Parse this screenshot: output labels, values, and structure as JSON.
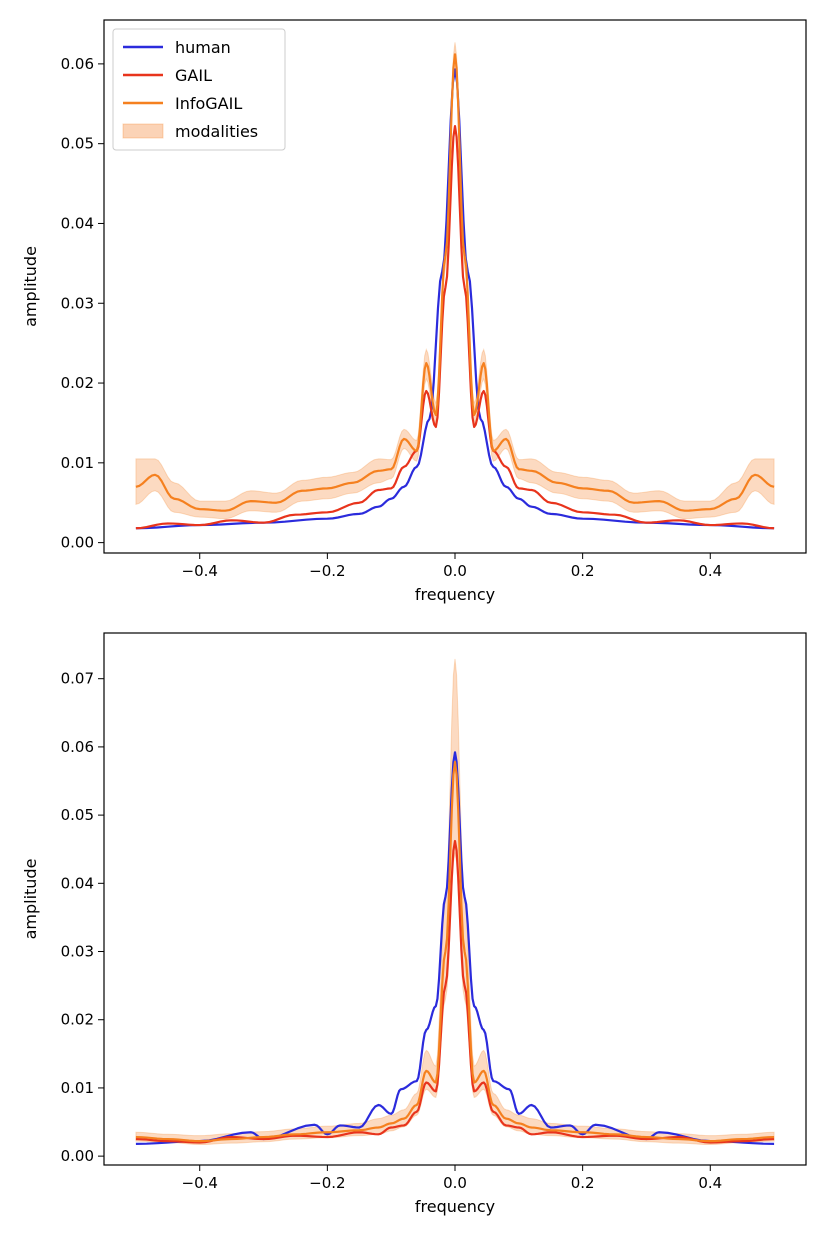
{
  "colors": {
    "human": "#2b2bdc",
    "gail": "#e8341c",
    "infogail": "#f5801f",
    "modalities_fill": "#fbd3b6",
    "axis": "#000000"
  },
  "chart_data": [
    {
      "type": "line",
      "xlabel": "frequency",
      "ylabel": "amplitude",
      "xlim": [
        -0.55,
        0.55
      ],
      "ylim": [
        -0.0013,
        0.0655
      ],
      "xticks": [
        -0.4,
        -0.2,
        0.0,
        0.2,
        0.4
      ],
      "xtick_labels": [
        "−0.4",
        "−0.2",
        "0.0",
        "0.2",
        "0.4"
      ],
      "yticks": [
        0.0,
        0.01,
        0.02,
        0.03,
        0.04,
        0.05,
        0.06
      ],
      "ytick_labels": [
        "0.00",
        "0.01",
        "0.02",
        "0.03",
        "0.04",
        "0.05",
        "0.06"
      ],
      "legend_position": "top-left",
      "legend": [
        "human",
        "GAIL",
        "InfoGAIL",
        "modalities"
      ],
      "peaks": {
        "human": 0.0593,
        "gail": 0.0522,
        "infogail": 0.0612,
        "modalities_upper": 0.0627,
        "modalities_lower": 0.0598
      },
      "tails": {
        "human": 0.0018,
        "gail": 0.0018,
        "infogail": 0.007
      },
      "series": [
        {
          "name": "human",
          "x": [
            -0.5,
            -0.4,
            -0.3,
            -0.2,
            -0.15,
            -0.12,
            -0.1,
            -0.08,
            -0.06,
            -0.04,
            -0.02,
            0.0,
            0.02,
            0.04,
            0.06,
            0.08,
            0.1,
            0.12,
            0.15,
            0.2,
            0.3,
            0.4,
            0.5
          ],
          "values": [
            0.0018,
            0.0022,
            0.0025,
            0.003,
            0.0036,
            0.0045,
            0.0055,
            0.007,
            0.0095,
            0.0155,
            0.034,
            0.0593,
            0.034,
            0.0155,
            0.0095,
            0.007,
            0.0055,
            0.0045,
            0.0036,
            0.003,
            0.0025,
            0.0022,
            0.0018
          ]
        },
        {
          "name": "GAIL",
          "x": [
            -0.5,
            -0.45,
            -0.4,
            -0.35,
            -0.3,
            -0.25,
            -0.2,
            -0.15,
            -0.12,
            -0.1,
            -0.08,
            -0.06,
            -0.045,
            -0.03,
            -0.015,
            0.0,
            0.015,
            0.03,
            0.045,
            0.06,
            0.08,
            0.1,
            0.12,
            0.15,
            0.2,
            0.25,
            0.3,
            0.35,
            0.4,
            0.45,
            0.5
          ],
          "values": [
            0.0018,
            0.0024,
            0.0022,
            0.0028,
            0.0025,
            0.0035,
            0.0038,
            0.005,
            0.0066,
            0.0068,
            0.0095,
            0.0115,
            0.019,
            0.0145,
            0.032,
            0.0522,
            0.032,
            0.0145,
            0.019,
            0.0115,
            0.0095,
            0.0068,
            0.0066,
            0.005,
            0.0038,
            0.0035,
            0.0025,
            0.0028,
            0.0022,
            0.0024,
            0.0018
          ]
        },
        {
          "name": "InfoGAIL",
          "x": [
            -0.5,
            -0.47,
            -0.44,
            -0.4,
            -0.36,
            -0.32,
            -0.28,
            -0.24,
            -0.2,
            -0.16,
            -0.12,
            -0.1,
            -0.08,
            -0.06,
            -0.045,
            -0.03,
            -0.015,
            0.0,
            0.015,
            0.03,
            0.045,
            0.06,
            0.08,
            0.1,
            0.12,
            0.16,
            0.2,
            0.24,
            0.28,
            0.32,
            0.36,
            0.4,
            0.44,
            0.47,
            0.5
          ],
          "values": [
            0.007,
            0.0085,
            0.0055,
            0.0042,
            0.004,
            0.0052,
            0.005,
            0.0065,
            0.0068,
            0.0075,
            0.009,
            0.0092,
            0.013,
            0.0115,
            0.0225,
            0.016,
            0.036,
            0.0612,
            0.036,
            0.016,
            0.0225,
            0.0115,
            0.013,
            0.0092,
            0.009,
            0.0075,
            0.0068,
            0.0065,
            0.005,
            0.0052,
            0.004,
            0.0042,
            0.0055,
            0.0085,
            0.007
          ]
        }
      ],
      "band": {
        "name": "modalities",
        "x": [
          -0.5,
          -0.47,
          -0.44,
          -0.4,
          -0.36,
          -0.32,
          -0.28,
          -0.24,
          -0.2,
          -0.16,
          -0.12,
          -0.1,
          -0.08,
          -0.06,
          -0.045,
          -0.03,
          -0.015,
          0.0,
          0.015,
          0.03,
          0.045,
          0.06,
          0.08,
          0.1,
          0.12,
          0.16,
          0.2,
          0.24,
          0.28,
          0.32,
          0.36,
          0.4,
          0.44,
          0.47,
          0.5
        ],
        "upper": [
          0.0105,
          0.0105,
          0.0075,
          0.0052,
          0.0052,
          0.0065,
          0.0062,
          0.0078,
          0.0082,
          0.0088,
          0.0105,
          0.0104,
          0.0142,
          0.0128,
          0.0242,
          0.0175,
          0.0375,
          0.0627,
          0.0375,
          0.0175,
          0.0242,
          0.0128,
          0.0142,
          0.0104,
          0.0105,
          0.0088,
          0.0082,
          0.0078,
          0.0062,
          0.0065,
          0.0052,
          0.0052,
          0.0075,
          0.0105,
          0.0105
        ],
        "lower": [
          0.0048,
          0.0065,
          0.0038,
          0.0032,
          0.003,
          0.004,
          0.0038,
          0.0052,
          0.0055,
          0.0062,
          0.0075,
          0.008,
          0.0118,
          0.0102,
          0.0205,
          0.0145,
          0.0345,
          0.0598,
          0.0345,
          0.0145,
          0.0205,
          0.0102,
          0.0118,
          0.008,
          0.0075,
          0.0062,
          0.0055,
          0.0052,
          0.0038,
          0.004,
          0.003,
          0.0032,
          0.0038,
          0.0065,
          0.0048
        ]
      }
    },
    {
      "type": "line",
      "xlabel": "frequency",
      "ylabel": "amplitude",
      "xlim": [
        -0.55,
        0.55
      ],
      "ylim": [
        -0.0013,
        0.0767
      ],
      "xticks": [
        -0.4,
        -0.2,
        0.0,
        0.2,
        0.4
      ],
      "xtick_labels": [
        "−0.4",
        "−0.2",
        "0.0",
        "0.2",
        "0.4"
      ],
      "yticks": [
        0.0,
        0.01,
        0.02,
        0.03,
        0.04,
        0.05,
        0.06,
        0.07
      ],
      "ytick_labels": [
        "0.00",
        "0.01",
        "0.02",
        "0.03",
        "0.04",
        "0.05",
        "0.06",
        "0.07"
      ],
      "legend_position": "none",
      "peaks": {
        "human": 0.0592,
        "gail": 0.0462,
        "infogail": 0.0578,
        "modalities_upper": 0.0729,
        "modalities_lower": 0.0445
      },
      "tails": {
        "human": 0.0018,
        "gail": 0.0025,
        "infogail": 0.0028
      },
      "series": [
        {
          "name": "human",
          "x": [
            -0.5,
            -0.4,
            -0.32,
            -0.3,
            -0.22,
            -0.2,
            -0.18,
            -0.15,
            -0.12,
            -0.1,
            -0.085,
            -0.06,
            -0.045,
            -0.03,
            -0.015,
            0.0,
            0.015,
            0.03,
            0.045,
            0.06,
            0.085,
            0.1,
            0.12,
            0.15,
            0.18,
            0.2,
            0.22,
            0.3,
            0.32,
            0.4,
            0.5
          ],
          "values": [
            0.0018,
            0.0022,
            0.0035,
            0.0025,
            0.0046,
            0.0032,
            0.0045,
            0.0042,
            0.0075,
            0.0062,
            0.0098,
            0.011,
            0.0185,
            0.022,
            0.038,
            0.0592,
            0.038,
            0.022,
            0.0185,
            0.011,
            0.0098,
            0.0062,
            0.0075,
            0.0042,
            0.0045,
            0.0032,
            0.0046,
            0.0025,
            0.0035,
            0.0022,
            0.0018
          ]
        },
        {
          "name": "GAIL",
          "x": [
            -0.5,
            -0.45,
            -0.4,
            -0.35,
            -0.3,
            -0.25,
            -0.2,
            -0.15,
            -0.12,
            -0.1,
            -0.08,
            -0.06,
            -0.045,
            -0.03,
            -0.015,
            0.0,
            0.015,
            0.03,
            0.045,
            0.06,
            0.08,
            0.1,
            0.12,
            0.15,
            0.2,
            0.25,
            0.3,
            0.35,
            0.4,
            0.45,
            0.5
          ],
          "values": [
            0.0025,
            0.0022,
            0.002,
            0.0028,
            0.0025,
            0.003,
            0.0028,
            0.0035,
            0.0032,
            0.0042,
            0.0045,
            0.0065,
            0.0108,
            0.0095,
            0.025,
            0.0462,
            0.025,
            0.0095,
            0.0108,
            0.0065,
            0.0045,
            0.0042,
            0.0032,
            0.0035,
            0.0028,
            0.003,
            0.0025,
            0.0028,
            0.002,
            0.0022,
            0.0025
          ]
        },
        {
          "name": "InfoGAIL",
          "x": [
            -0.5,
            -0.45,
            -0.4,
            -0.35,
            -0.3,
            -0.25,
            -0.2,
            -0.15,
            -0.12,
            -0.1,
            -0.08,
            -0.06,
            -0.045,
            -0.03,
            -0.015,
            0.0,
            0.015,
            0.03,
            0.045,
            0.06,
            0.08,
            0.1,
            0.12,
            0.15,
            0.2,
            0.25,
            0.3,
            0.35,
            0.4,
            0.45,
            0.5
          ],
          "values": [
            0.0028,
            0.0025,
            0.0022,
            0.0025,
            0.0028,
            0.0032,
            0.0035,
            0.0038,
            0.0042,
            0.0048,
            0.0055,
            0.0075,
            0.0125,
            0.0108,
            0.03,
            0.0578,
            0.03,
            0.0108,
            0.0125,
            0.0075,
            0.0055,
            0.0048,
            0.0042,
            0.0038,
            0.0035,
            0.0032,
            0.0028,
            0.0025,
            0.0022,
            0.0025,
            0.0028
          ]
        }
      ],
      "band": {
        "name": "modalities",
        "x": [
          -0.5,
          -0.45,
          -0.4,
          -0.35,
          -0.3,
          -0.25,
          -0.2,
          -0.15,
          -0.12,
          -0.1,
          -0.08,
          -0.06,
          -0.045,
          -0.03,
          -0.015,
          0.0,
          0.015,
          0.03,
          0.045,
          0.06,
          0.08,
          0.1,
          0.12,
          0.15,
          0.2,
          0.25,
          0.3,
          0.35,
          0.4,
          0.45,
          0.5
        ],
        "upper": [
          0.0035,
          0.0032,
          0.003,
          0.0033,
          0.0036,
          0.004,
          0.0044,
          0.0048,
          0.0055,
          0.006,
          0.0068,
          0.0092,
          0.0155,
          0.0132,
          0.0375,
          0.0729,
          0.0375,
          0.0132,
          0.0155,
          0.0092,
          0.0068,
          0.006,
          0.0055,
          0.0048,
          0.0044,
          0.004,
          0.0036,
          0.0033,
          0.003,
          0.0032,
          0.0035
        ],
        "lower": [
          0.0022,
          0.002,
          0.0017,
          0.0019,
          0.0021,
          0.0025,
          0.0027,
          0.003,
          0.0032,
          0.0037,
          0.0043,
          0.006,
          0.0098,
          0.0086,
          0.023,
          0.0445,
          0.023,
          0.0086,
          0.0098,
          0.006,
          0.0043,
          0.0037,
          0.0032,
          0.003,
          0.0027,
          0.0025,
          0.0021,
          0.0019,
          0.0017,
          0.002,
          0.0022
        ]
      }
    }
  ]
}
